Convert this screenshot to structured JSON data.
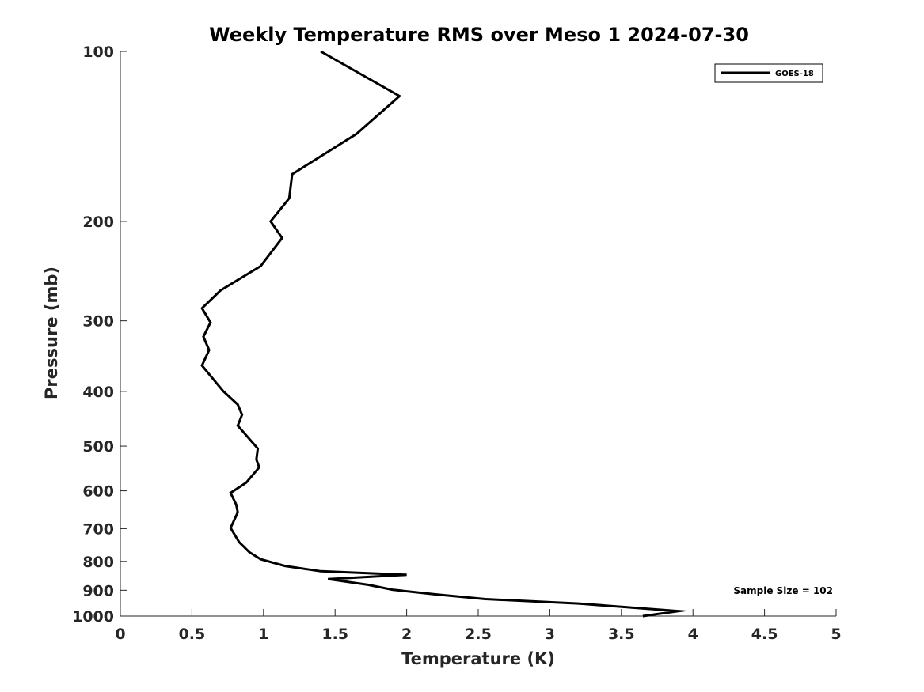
{
  "chart_data": {
    "type": "line",
    "title": "Weekly Temperature RMS over Meso 1 2024-07-30",
    "xlabel": "Temperature (K)",
    "ylabel": "Pressure (mb)",
    "xlim": [
      0,
      5
    ],
    "ylim": [
      100,
      1000
    ],
    "y_scale": "log",
    "y_reversed": true,
    "x_ticks": [
      0,
      0.5,
      1,
      1.5,
      2,
      2.5,
      3,
      3.5,
      4,
      4.5,
      5
    ],
    "x_tick_labels": [
      "0",
      "0.5",
      "1",
      "1.5",
      "2",
      "2.5",
      "3",
      "3.5",
      "4",
      "4.5",
      "5"
    ],
    "y_ticks": [
      100,
      200,
      300,
      400,
      500,
      600,
      700,
      800,
      900,
      1000
    ],
    "y_tick_labels": [
      "100",
      "200",
      "300",
      "400",
      "500",
      "600",
      "700",
      "800",
      "900",
      "1000"
    ],
    "grid": false,
    "legend_position": "top-right",
    "annotation": "Sample Size = 102",
    "series": [
      {
        "name": "GOES-18",
        "color": "#000000",
        "points": [
          [
            1.4,
            100
          ],
          [
            1.95,
            120
          ],
          [
            1.65,
            140
          ],
          [
            1.2,
            165
          ],
          [
            1.18,
            182
          ],
          [
            1.05,
            200
          ],
          [
            1.13,
            214
          ],
          [
            0.98,
            240
          ],
          [
            0.7,
            265
          ],
          [
            0.57,
            285
          ],
          [
            0.63,
            302
          ],
          [
            0.58,
            320
          ],
          [
            0.62,
            338
          ],
          [
            0.57,
            360
          ],
          [
            0.72,
            400
          ],
          [
            0.82,
            422
          ],
          [
            0.85,
            440
          ],
          [
            0.82,
            460
          ],
          [
            0.96,
            505
          ],
          [
            0.95,
            528
          ],
          [
            0.97,
            545
          ],
          [
            0.88,
            580
          ],
          [
            0.77,
            605
          ],
          [
            0.81,
            635
          ],
          [
            0.82,
            655
          ],
          [
            0.77,
            698
          ],
          [
            0.83,
            740
          ],
          [
            0.9,
            770
          ],
          [
            0.98,
            793
          ],
          [
            1.15,
            815
          ],
          [
            1.4,
            833
          ],
          [
            2.0,
            845
          ],
          [
            1.45,
            860
          ],
          [
            1.73,
            880
          ],
          [
            1.9,
            898
          ],
          [
            2.2,
            915
          ],
          [
            2.55,
            933
          ],
          [
            3.2,
            950
          ],
          [
            3.9,
            980
          ],
          [
            3.65,
            1000
          ]
        ]
      }
    ]
  }
}
